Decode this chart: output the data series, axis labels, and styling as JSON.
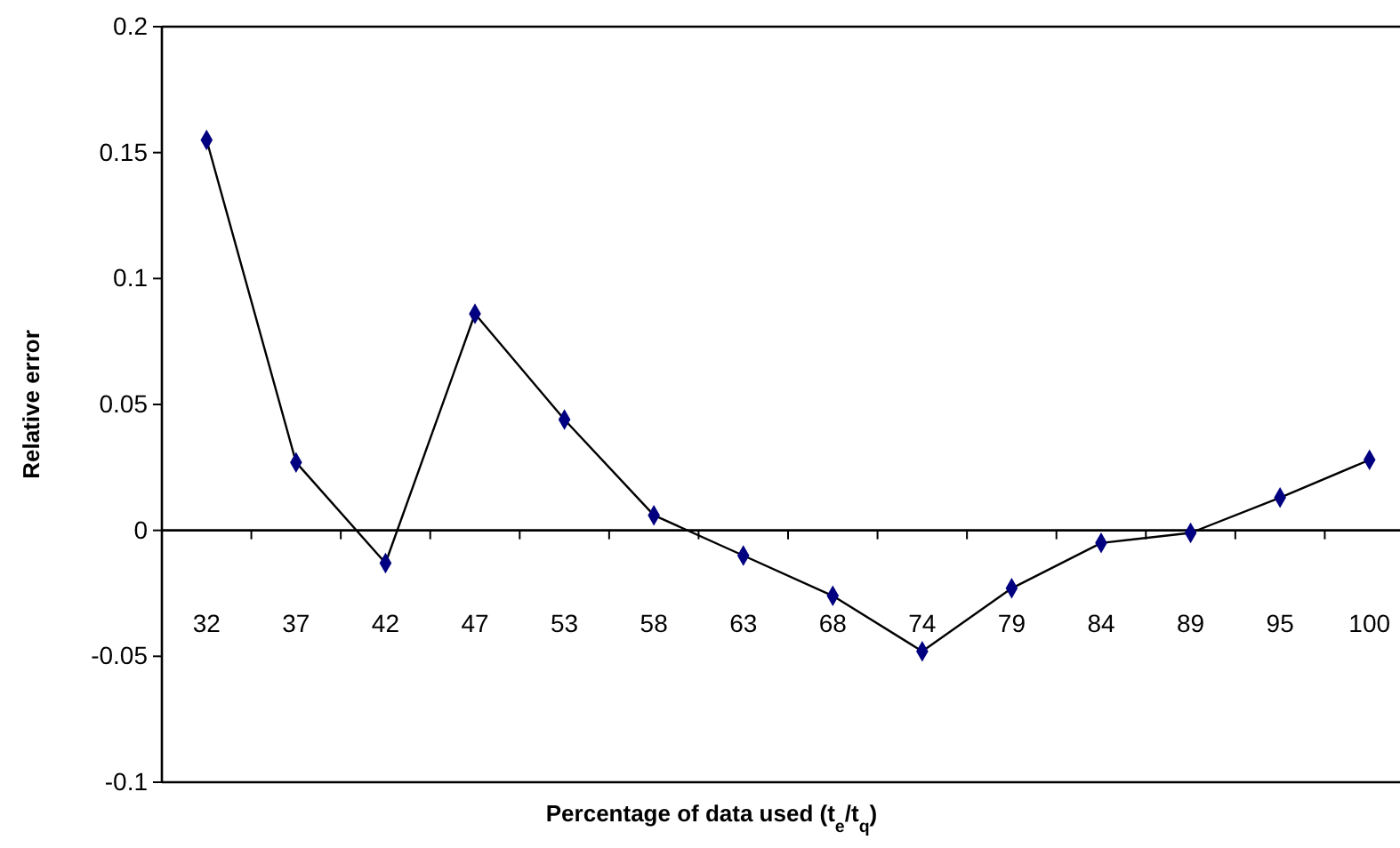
{
  "chart_data": {
    "type": "line",
    "ylabel": "Relative error",
    "xlabel": "Percentage of data used (t$_{e}$/t$_{q}$)",
    "categories": [
      "32",
      "37",
      "42",
      "47",
      "53",
      "58",
      "63",
      "68",
      "74",
      "79",
      "84",
      "89",
      "95",
      "100"
    ],
    "series": [
      {
        "color": "#000080",
        "values": [
          0.155,
          0.027,
          -0.013,
          0.086,
          0.044,
          0.006,
          -0.01,
          -0.026,
          -0.048,
          -0.023,
          -0.005,
          -0.001,
          0.013,
          0.028
        ]
      }
    ],
    "ylim": [
      -0.1,
      0.2
    ],
    "yticks": [
      -0.1,
      -0.05,
      0,
      0.05,
      0.1,
      0.15,
      0.2
    ],
    "marker": "diamond"
  }
}
